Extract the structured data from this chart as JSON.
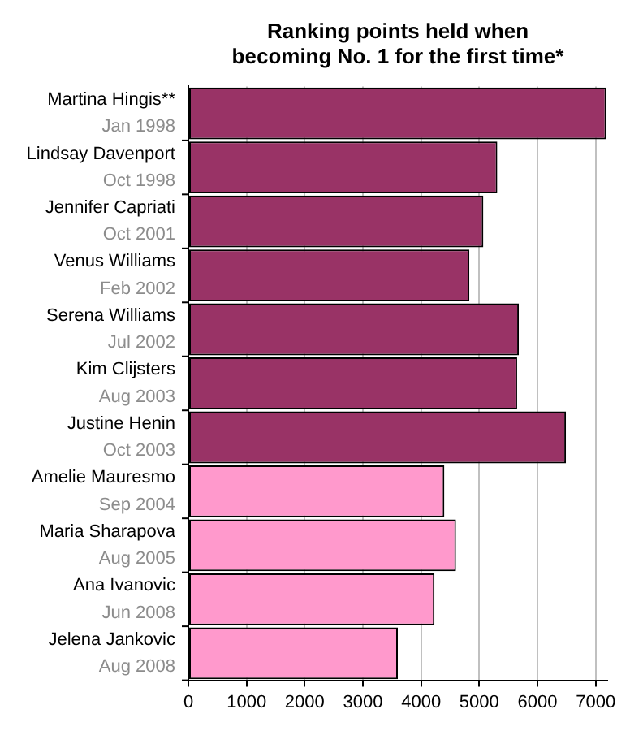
{
  "chart_data": {
    "type": "bar",
    "orientation": "horizontal",
    "title": "Ranking points held when\nbecoming No. 1 for the first time*",
    "categories": [
      "Martina Hingis**\nJan 1998",
      "Lindsay Davenport\nOct 1998",
      "Jennifer Capriati\nOct 2001",
      "Venus Williams\nFeb 2002",
      "Serena Williams\nJul 2002",
      "Kim Clijsters\nAug 2003",
      "Justine Henin\nOct 2003",
      "Amelie Mauresmo\nSep 2004",
      "Maria Sharapova\nAug 2005",
      "Ana Ivanovic\nJun 2008",
      "Jelena Jankovic\nAug 2008"
    ],
    "values": [
      7180,
      5310,
      5070,
      4830,
      5680,
      5650,
      6490,
      4400,
      4600,
      4230,
      3600
    ],
    "colors": [
      "#993366",
      "#993366",
      "#993366",
      "#993366",
      "#993366",
      "#993366",
      "#993366",
      "#ff99cc",
      "#ff99cc",
      "#ff99cc",
      "#ff99cc"
    ],
    "xlim": [
      0,
      7200
    ],
    "xticks": [
      0,
      1000,
      2000,
      3000,
      4000,
      5000,
      6000,
      7000
    ],
    "grid": "x",
    "legend": false
  }
}
